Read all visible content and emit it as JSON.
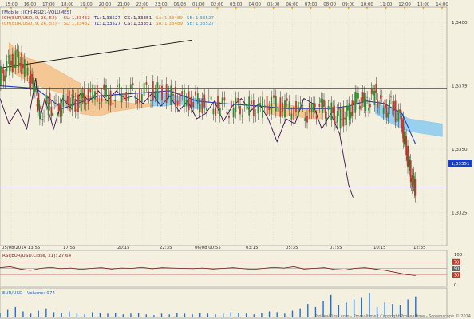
{
  "colors": {
    "background": "#f3f0df",
    "grid": "#d9d3b8",
    "panel_border": "#8c8c8c",
    "price_line": "#1a1aaa",
    "kijun": "#1e3fbf",
    "chikou": "#3b1250",
    "cloud_bull": "#f5c38c",
    "cloud_bear": "#8fcdf0",
    "rsi": "#7a1a1a",
    "volume": "#1f6fd6",
    "price_badge": "#1a3fbf",
    "time_marker": "#e8a000"
  },
  "header": {
    "line1": "[Mobile : ICHI-RSI21-VOLUMES]",
    "line2_prefix": "ICH(EUR/USD, 9, 26, 52) -",
    "line2_sl": "SL: 1,33452",
    "line2_tl": "TL: 1,33527",
    "line2_cs": "CS: 1,33351",
    "line2_sa": "SA: 1,33489",
    "line2_sb": "SB: 1,33527",
    "line3_prefix": "ICH(EUR/USD, 9, 26, 52) -",
    "line3_sl": "SL: 1,33452",
    "line3_tl": "TL: 1,33527",
    "line3_cs": "CS: 1,33351",
    "line3_sa": "SA: 1,33489",
    "line3_sb": "SB: 1,33527"
  },
  "rsi_panel": {
    "label": "RSI(EUR/USD.Close, 21): 27.64",
    "levels": [
      "70",
      "50",
      "30"
    ],
    "top_label": "100",
    "bottom_label": "0"
  },
  "volume_panel": {
    "label": "EUR/USD - Volume: 974"
  },
  "watermark": "ProRealTime.com - Prorealtime | Copyright ProRealtime - Screenscope © 2014",
  "current_price": "1,33351",
  "chart_data": {
    "type": "candlestick",
    "title": "EUR/USD",
    "top_time_axis": [
      "15:00",
      "16:00",
      "17:00",
      "18:00",
      "19:00",
      "20:00",
      "21:00",
      "22:00",
      "23:00",
      "06/08",
      "01:00",
      "02:00",
      "03:00",
      "04:00",
      "05:00",
      "06:00",
      "07:00",
      "08:00",
      "09:00",
      "10:00",
      "11:00",
      "12:00",
      "13:00",
      "14:00"
    ],
    "bottom_time_axis": [
      "05/08/2014 13:55",
      "17:55",
      "20:15",
      "22:35",
      "06/08 00:55",
      "03:15",
      "05:35",
      "07:55",
      "10:15",
      "12:35"
    ],
    "y_tick_labels": [
      "1,3400",
      "1,3375",
      "1,3350",
      "1,3325"
    ],
    "ylim": [
      1.3312,
      1.3406
    ],
    "horizontal_levels": [
      1.3374,
      1.33351
    ],
    "trendline": {
      "from": [
        0,
        1.3382
      ],
      "to": [
        0.43,
        1.3393
      ]
    },
    "price_path": [
      [
        0.0,
        1.3378
      ],
      [
        0.02,
        1.3383
      ],
      [
        0.04,
        1.3386
      ],
      [
        0.06,
        1.3381
      ],
      [
        0.08,
        1.3373
      ],
      [
        0.09,
        1.3364
      ],
      [
        0.11,
        1.3368
      ],
      [
        0.13,
        1.3365
      ],
      [
        0.15,
        1.337
      ],
      [
        0.17,
        1.3367
      ],
      [
        0.19,
        1.3371
      ],
      [
        0.22,
        1.3372
      ],
      [
        0.25,
        1.3371
      ],
      [
        0.28,
        1.3373
      ],
      [
        0.31,
        1.3372
      ],
      [
        0.34,
        1.3373
      ],
      [
        0.37,
        1.3372
      ],
      [
        0.4,
        1.337
      ],
      [
        0.43,
        1.3369
      ],
      [
        0.46,
        1.3368
      ],
      [
        0.49,
        1.3367
      ],
      [
        0.52,
        1.3366
      ],
      [
        0.55,
        1.3367
      ],
      [
        0.58,
        1.3366
      ],
      [
        0.61,
        1.3368
      ],
      [
        0.64,
        1.3366
      ],
      [
        0.67,
        1.3365
      ],
      [
        0.7,
        1.3364
      ],
      [
        0.72,
        1.3366
      ],
      [
        0.74,
        1.3365
      ],
      [
        0.76,
        1.3362
      ],
      [
        0.78,
        1.3364
      ],
      [
        0.8,
        1.337
      ],
      [
        0.82,
        1.3368
      ],
      [
        0.84,
        1.3372
      ],
      [
        0.86,
        1.3366
      ],
      [
        0.88,
        1.3367
      ],
      [
        0.9,
        1.336
      ],
      [
        0.91,
        1.335
      ],
      [
        0.92,
        1.334
      ],
      [
        0.93,
        1.3335
      ]
    ],
    "kijun_path": [
      [
        0.0,
        1.3375
      ],
      [
        0.08,
        1.3374
      ],
      [
        0.14,
        1.3366
      ],
      [
        0.22,
        1.3371
      ],
      [
        0.3,
        1.3372
      ],
      [
        0.38,
        1.3373
      ],
      [
        0.44,
        1.3369
      ],
      [
        0.5,
        1.3368
      ],
      [
        0.58,
        1.3367
      ],
      [
        0.64,
        1.3366
      ],
      [
        0.7,
        1.3366
      ],
      [
        0.74,
        1.3366
      ],
      [
        0.78,
        1.3367
      ],
      [
        0.82,
        1.3369
      ],
      [
        0.86,
        1.3368
      ],
      [
        0.9,
        1.3364
      ],
      [
        0.93,
        1.3352
      ]
    ],
    "chikou_path": [
      [
        0.0,
        1.337
      ],
      [
        0.02,
        1.336
      ],
      [
        0.04,
        1.3366
      ],
      [
        0.06,
        1.3358
      ],
      [
        0.08,
        1.3378
      ],
      [
        0.09,
        1.3362
      ],
      [
        0.1,
        1.337
      ],
      [
        0.12,
        1.3358
      ],
      [
        0.14,
        1.337
      ],
      [
        0.16,
        1.3366
      ],
      [
        0.18,
        1.3372
      ],
      [
        0.2,
        1.3369
      ],
      [
        0.22,
        1.3373
      ],
      [
        0.24,
        1.3369
      ],
      [
        0.26,
        1.3373
      ],
      [
        0.28,
        1.337
      ],
      [
        0.3,
        1.3371
      ],
      [
        0.32,
        1.3368
      ],
      [
        0.34,
        1.3372
      ],
      [
        0.36,
        1.3367
      ],
      [
        0.38,
        1.3371
      ],
      [
        0.4,
        1.3365
      ],
      [
        0.42,
        1.3369
      ],
      [
        0.44,
        1.3362
      ],
      [
        0.46,
        1.3364
      ],
      [
        0.48,
        1.3369
      ],
      [
        0.5,
        1.3361
      ],
      [
        0.52,
        1.3367
      ],
      [
        0.54,
        1.337
      ],
      [
        0.56,
        1.3365
      ],
      [
        0.58,
        1.3368
      ],
      [
        0.6,
        1.3362
      ],
      [
        0.62,
        1.3353
      ],
      [
        0.64,
        1.3362
      ],
      [
        0.66,
        1.336
      ],
      [
        0.68,
        1.337
      ],
      [
        0.7,
        1.3368
      ],
      [
        0.72,
        1.3358
      ],
      [
        0.74,
        1.3364
      ],
      [
        0.76,
        1.3356
      ],
      [
        0.78,
        1.3336
      ],
      [
        0.79,
        1.3331
      ]
    ],
    "cloud": [
      {
        "x0": 0.02,
        "x1": 0.18,
        "top": [
          1.3392,
          1.3386,
          1.3384,
          1.338,
          1.3376
        ],
        "bottom": [
          1.3381,
          1.3377,
          1.3374,
          1.3372,
          1.337
        ],
        "color": "bull"
      },
      {
        "x0": 0.18,
        "x1": 0.34,
        "top": [
          1.3372,
          1.337,
          1.3369,
          1.3368,
          1.3368
        ],
        "bottom": [
          1.3364,
          1.3363,
          1.3365,
          1.3366,
          1.3367
        ],
        "color": "bull"
      },
      {
        "x0": 0.34,
        "x1": 0.46,
        "top": [
          1.3373,
          1.3372,
          1.3371,
          1.337,
          1.337
        ],
        "bottom": [
          1.3367,
          1.3367,
          1.3368,
          1.3366,
          1.3366
        ],
        "color": "bear"
      },
      {
        "x0": 0.6,
        "x1": 0.72,
        "top": [
          1.3368,
          1.3368,
          1.3367,
          1.3366,
          1.3366
        ],
        "bottom": [
          1.3364,
          1.3363,
          1.3363,
          1.3362,
          1.3362
        ],
        "color": "bull"
      },
      {
        "x0": 0.84,
        "x1": 0.99,
        "top": [
          1.3368,
          1.3366,
          1.3362,
          1.3361,
          1.336
        ],
        "bottom": [
          1.3364,
          1.336,
          1.3357,
          1.3356,
          1.3355
        ],
        "color": "bear"
      }
    ],
    "rsi_values": [
      52,
      55,
      48,
      44,
      50,
      53,
      49,
      51,
      47,
      50,
      52,
      48,
      51,
      50,
      53,
      49,
      52,
      51,
      50,
      49,
      51,
      48,
      50,
      52,
      49,
      47,
      50,
      53,
      51,
      55,
      48,
      50,
      52,
      47,
      45,
      50,
      52,
      48,
      44,
      38,
      32,
      28
    ],
    "volume_values": [
      6,
      10,
      14,
      8,
      5,
      9,
      12,
      7,
      6,
      8,
      5,
      4,
      7,
      6,
      5,
      6,
      4,
      5,
      6,
      4,
      3,
      5,
      4,
      6,
      5,
      4,
      6,
      5,
      4,
      5,
      7,
      6,
      5,
      4,
      6,
      8,
      7,
      5,
      9,
      12,
      18,
      14,
      22,
      30,
      16,
      20,
      24,
      26,
      32,
      14,
      20,
      18,
      16,
      24,
      28
    ]
  }
}
